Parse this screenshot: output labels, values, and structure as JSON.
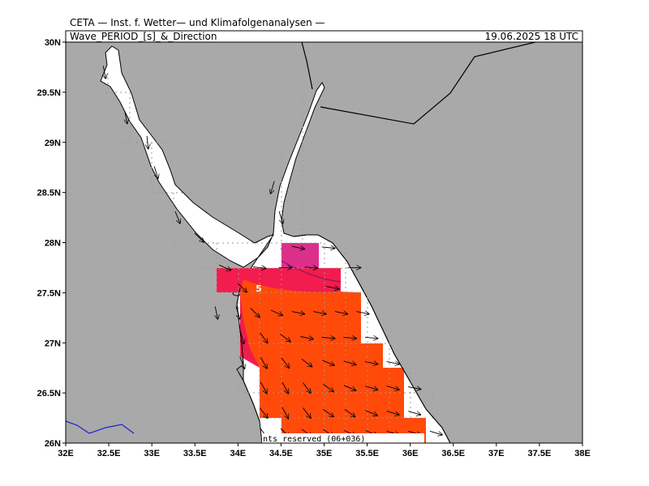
{
  "header": {
    "credit": "CETA — Inst. f. Wetter— und Klimafolgenanalysen —",
    "product": "Wave_PERIOD_[s]_&_Direction",
    "valid_time": "19.06.2025  18 UTC"
  },
  "footer": {
    "rights": "nts reserved (06+036)"
  },
  "axes": {
    "x_ticks": [
      "32E",
      "32.5E",
      "33E",
      "33.5E",
      "34E",
      "34.5E",
      "35E",
      "35.5E",
      "36E",
      "36.5E",
      "37E",
      "37.5E",
      "38E"
    ],
    "y_ticks": [
      "30N",
      "29.5N",
      "29N",
      "28.5N",
      "28N",
      "27.5N",
      "27N",
      "26.5N",
      "26N"
    ]
  },
  "map": {
    "lon_range": [
      32,
      38
    ],
    "lat_range": [
      26,
      30
    ],
    "contour_label": "5",
    "colors": {
      "land": "#a9a9a9",
      "sea": "#ffffff",
      "period_high": "#ff4a0a",
      "period_mid": "#f21c4e",
      "period_low": "#dc2f8c",
      "grid": "#9a9a9a"
    }
  }
}
